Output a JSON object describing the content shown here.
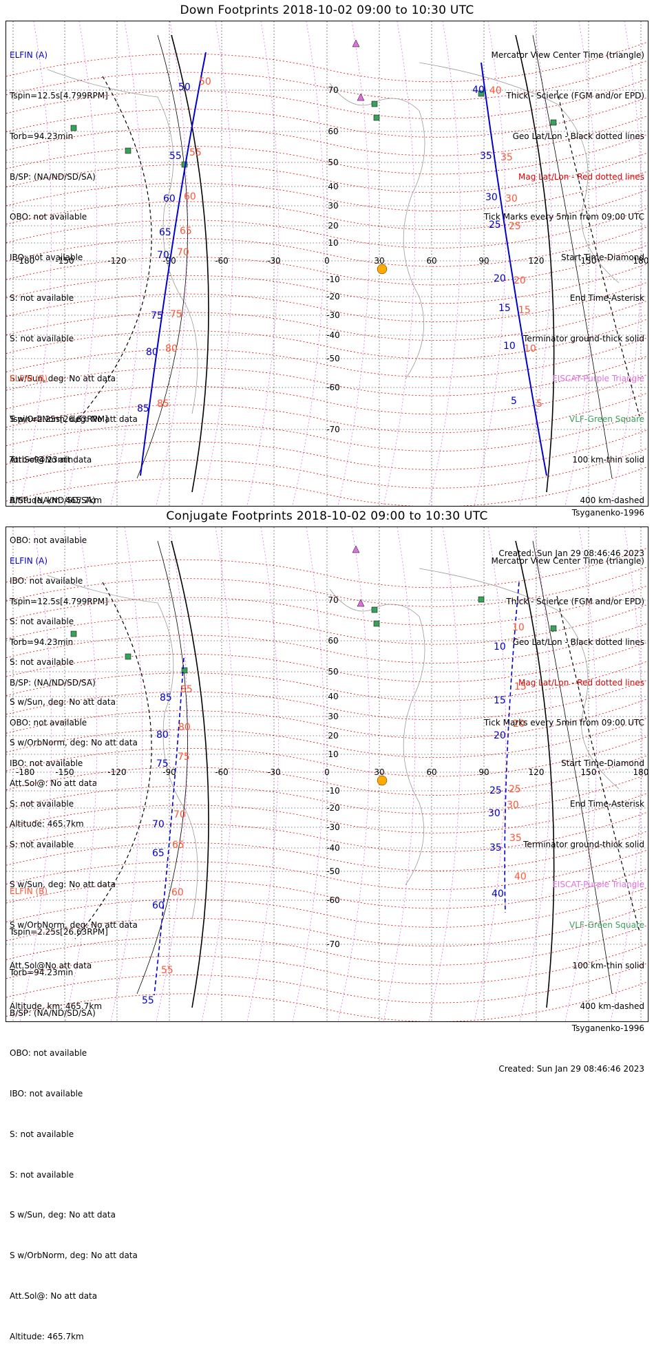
{
  "colors": {
    "elfin_a": "#0000cc",
    "elfin_b": "#ff5533",
    "mag_grid": "#e00000",
    "geo_grid": "#000000",
    "lon_pink": "#e070e0",
    "station_green": "#3aa15a",
    "sun": "#ffaa00"
  },
  "panels": [
    {
      "title": "Down Footprints 2018-10-02 09:00 to 10:30 UTC",
      "elfin_a": {
        "heading": "ELFIN (A)",
        "lines": [
          "Tspin=12.5s[4.799RPM]",
          "Torb=94.23min",
          "B/SP: (NA/ND/SD/SA)",
          "OBO: not available",
          "IBO: not available",
          "S: not available",
          "S: not available",
          "S w/Sun, deg: No att data",
          "S w/OrbNorm, deg: No att data",
          "Att.Sol@No att data",
          "Altitude, km: 465.7km"
        ]
      },
      "elfin_b": {
        "heading": "ELFIN (B)",
        "lines": [
          "Tspin=2.25s[26.63RPM]",
          "Torb=94.23min",
          "B/SP: (NA/ND/SD/SA)",
          "OBO: not available",
          "IBO: not available",
          "S: not available",
          "S: not available",
          "S w/Sun, deg: No att data",
          "S w/OrbNorm, deg: No att data",
          "Att.Sol@: No att data",
          "Altitude: 465.7km"
        ]
      },
      "legend": [
        {
          "text": "Mercator View Center Time (triangle)",
          "color": "black"
        },
        {
          "text": "Thick - Science (FGM and/or EPD)",
          "color": "black"
        },
        {
          "text": "Geo Lat/Lon - Black dotted lines",
          "color": "black"
        },
        {
          "text": "Mag Lat/Lon - Red dotted lines",
          "color": "red"
        },
        {
          "text": "Tick Marks every 5min from 09:00 UTC",
          "color": "black"
        },
        {
          "text": "Start Time-Diamond",
          "color": "black"
        },
        {
          "text": "End Time-Asterisk",
          "color": "black"
        },
        {
          "text": "Terminator ground-thick solid",
          "color": "black"
        },
        {
          "text": "EISCAT-Purple Triangle",
          "color": "pink"
        },
        {
          "text": "VLF-Green Square",
          "color": "green"
        },
        {
          "text": "100 km-thin solid",
          "color": "black"
        },
        {
          "text": "400 km-dashed",
          "color": "black"
        }
      ],
      "model": "Tsyganenko-1996",
      "created": "Created: Sun Jan 29 08:46:46 2023",
      "track_labels_a": [
        "50",
        "55",
        "60",
        "65",
        "70",
        "75",
        "80",
        "85",
        "40",
        "35",
        "30",
        "25",
        "20",
        "15",
        "10",
        "5"
      ],
      "track_labels_b": [
        "50",
        "55",
        "60",
        "65",
        "70",
        "75",
        "80",
        "85",
        "40",
        "35",
        "30",
        "25",
        "20",
        "15",
        "10",
        "5"
      ]
    },
    {
      "title": "Conjugate Footprints 2018-10-02 09:00 to 10:30 UTC",
      "elfin_a": {
        "heading": "ELFIN (A)",
        "lines": [
          "Tspin=12.5s[4.799RPM]",
          "Torb=94.23min",
          "B/SP: (NA/ND/SD/SA)",
          "OBO: not available",
          "IBO: not available",
          "S: not available",
          "S: not available",
          "S w/Sun, deg: No att data",
          "S w/OrbNorm, deg: No att data",
          "Att.Sol@No att data",
          "Altitude, km: 465.7km"
        ]
      },
      "elfin_b": {
        "heading": "ELFIN (B)",
        "lines": [
          "Tspin=2.25s[26.63RPM]",
          "Torb=94.23min",
          "B/SP: (NA/ND/SD/SA)",
          "OBO: not available",
          "IBO: not available",
          "S: not available",
          "S: not available",
          "S w/Sun, deg: No att data",
          "S w/OrbNorm, deg: No att data",
          "Att.Sol@: No att data",
          "Altitude: 465.7km"
        ]
      },
      "legend": [
        {
          "text": "Mercator View Center Time (triangle)",
          "color": "black"
        },
        {
          "text": "Thick - Science (FGM and/or EPD)",
          "color": "black"
        },
        {
          "text": "Geo Lat/Lon - Black dotted lines",
          "color": "black"
        },
        {
          "text": "Mag Lat/Lon - Red dotted lines",
          "color": "red"
        },
        {
          "text": "Tick Marks every 5min from 09:00 UTC",
          "color": "black"
        },
        {
          "text": "Start Time-Diamond",
          "color": "black"
        },
        {
          "text": "End Time-Asterisk",
          "color": "black"
        },
        {
          "text": "Terminator ground-thick solid",
          "color": "black"
        },
        {
          "text": "EISCAT-Purple Triangle",
          "color": "pink"
        },
        {
          "text": "VLF-Green Square",
          "color": "green"
        },
        {
          "text": "100 km-thin solid",
          "color": "black"
        },
        {
          "text": "400 km-dashed",
          "color": "black"
        }
      ],
      "model": "Tsyganenko-1996",
      "created": "Created: Sun Jan 29 08:46:46 2023",
      "track_labels_a": [
        "85",
        "80",
        "75",
        "70",
        "65",
        "60",
        "55",
        "10",
        "15",
        "20",
        "25",
        "30",
        "35",
        "40"
      ],
      "track_labels_b": [
        "85",
        "80",
        "75",
        "70",
        "65",
        "60",
        "55",
        "10",
        "15",
        "20",
        "25",
        "30",
        "35",
        "40"
      ]
    }
  ],
  "lon_ticks": [
    "-180",
    "-150",
    "-120",
    "-90",
    "-60",
    "-30",
    "0",
    "30",
    "60",
    "90",
    "120",
    "150",
    "180"
  ],
  "lat_ticks": [
    "70",
    "60",
    "50",
    "40",
    "30",
    "20",
    "10",
    "0",
    "-10",
    "-20",
    "-30",
    "-40",
    "-50",
    "-60",
    "-70"
  ]
}
